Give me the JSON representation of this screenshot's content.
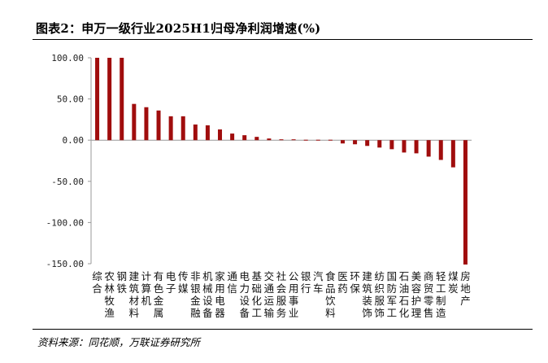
{
  "header": {
    "title": "图表2：申万一级行业2025H1归母净利润增速(%)"
  },
  "footer": {
    "source": "资料来源：同花顺，万联证券研究所"
  },
  "colors": {
    "bar": "#a00d0d",
    "axis": "#999999"
  },
  "chart_data": {
    "type": "bar",
    "title": "申万一级行业2025H1归母净利润增速(%)",
    "xlabel": "",
    "ylabel": "",
    "ylim": [
      -150,
      100
    ],
    "yticks": [
      "100.00",
      "50.00",
      "0.00",
      "-50.00",
      "-100.00",
      "-150.00"
    ],
    "ytick_values": [
      100,
      50,
      0,
      -50,
      -100,
      -150
    ],
    "grid": false,
    "legend": "none",
    "categories": [
      "综合",
      "农林牧渔",
      "钢铁",
      "建筑材料",
      "计算机",
      "有色金属",
      "电子",
      "传媒",
      "非银金融",
      "机械设备",
      "家用电器",
      "通信",
      "电力设备",
      "基础化工",
      "交通运输",
      "社会服务",
      "公用事业",
      "银行",
      "汽车",
      "食品饮料",
      "医药",
      "环保",
      "建筑装饰",
      "纺织服饰",
      "国防军工",
      "石油石化",
      "美容护理",
      "商贸零售",
      "轻工制造",
      "煤炭",
      "房地产"
    ],
    "values": [
      100,
      100,
      100,
      44,
      40,
      36,
      29,
      29,
      19,
      18,
      13,
      8,
      6,
      4,
      2,
      1,
      1,
      0.5,
      0.5,
      -0.5,
      -4,
      -5,
      -7,
      -9,
      -11,
      -15,
      -16,
      -20,
      -24,
      -33,
      -151
    ]
  }
}
